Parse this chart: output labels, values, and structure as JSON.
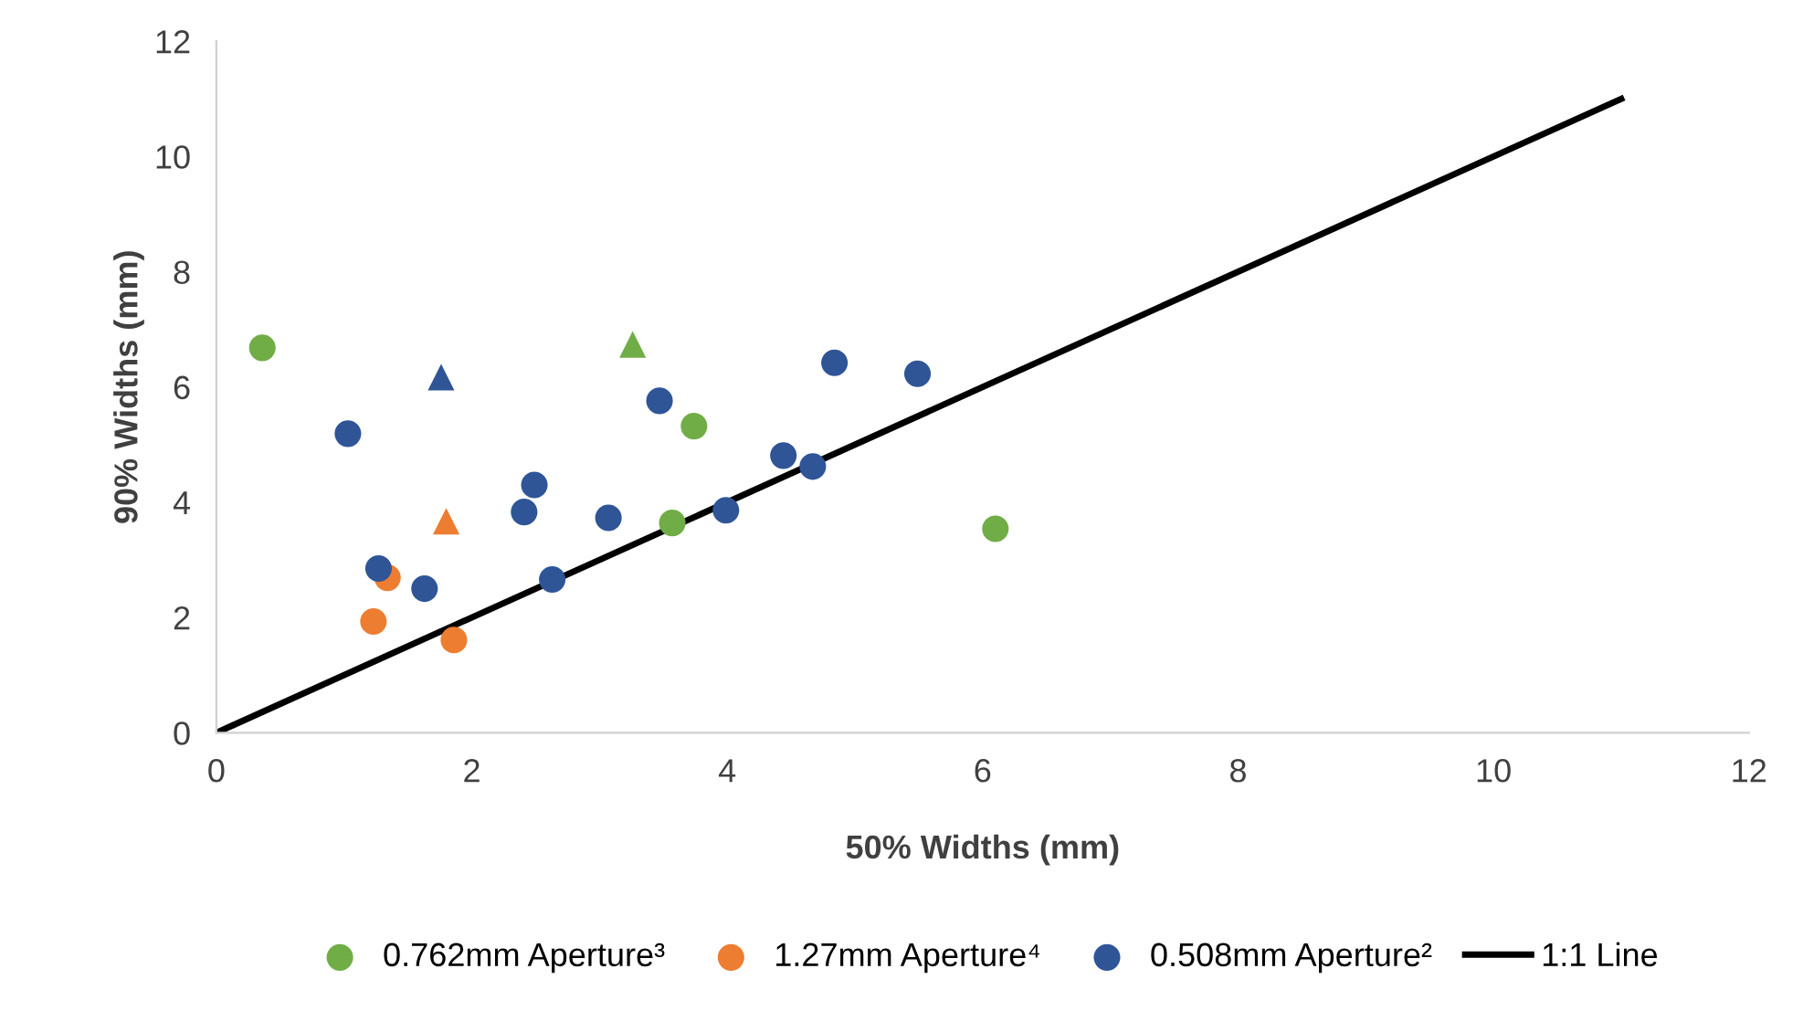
{
  "chart_data": {
    "type": "scatter",
    "xlabel": "50% Widths (mm)",
    "ylabel": "90% Widths (mm)",
    "xlim": [
      0,
      12
    ],
    "ylim": [
      0,
      12
    ],
    "xticks": [
      0,
      2,
      4,
      6,
      8,
      10,
      12
    ],
    "yticks": [
      0,
      2,
      4,
      6,
      8,
      10,
      12
    ],
    "grid": false,
    "legend": "bottom",
    "marker": "circle",
    "series": [
      {
        "name": "0.762mm Aperture³",
        "color": "#70ad47",
        "x": [
          0.36,
          3.74,
          3.57,
          6.1
        ],
        "values": [
          6.68,
          5.32,
          3.64,
          3.54
        ]
      },
      {
        "name": "1.27mm Aperture⁴",
        "color": "#ed7d31",
        "x": [
          1.34,
          1.23,
          1.86
        ],
        "values": [
          2.69,
          1.93,
          1.61
        ]
      },
      {
        "name": "0.508mm Aperture²",
        "color": "#2f5597",
        "x": [
          1.03,
          1.27,
          1.63,
          2.49,
          2.41,
          2.63,
          3.07,
          3.47,
          3.99,
          4.44,
          4.67,
          4.84,
          5.49
        ],
        "values": [
          5.19,
          2.85,
          2.5,
          4.3,
          3.83,
          2.66,
          3.73,
          5.76,
          3.86,
          4.81,
          4.62,
          6.42,
          6.23
        ]
      },
      {
        "color": "#70ad47",
        "marker": "triangle",
        "x": [
          3.26
        ],
        "values": [
          6.74
        ]
      },
      {
        "color": "#ed7d31",
        "marker": "triangle",
        "x": [
          1.8
        ],
        "values": [
          3.67
        ]
      },
      {
        "color": "#2f5597",
        "marker": "triangle",
        "x": [
          1.76
        ],
        "values": [
          6.17
        ]
      },
      {
        "name": "1:1 Line",
        "type": "line",
        "color": "#000000",
        "marker": "none",
        "line_style": "solid",
        "x": [
          0,
          11
        ],
        "values": [
          0,
          11
        ]
      }
    ]
  }
}
